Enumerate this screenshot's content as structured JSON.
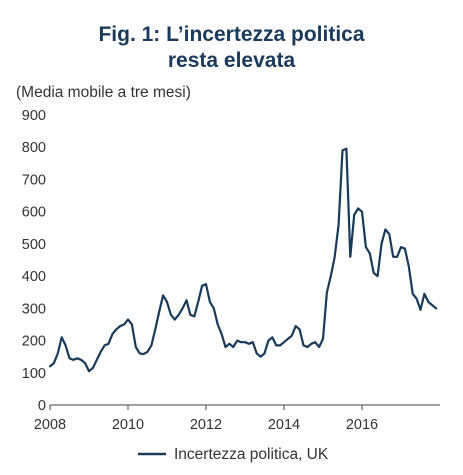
{
  "chart_data": {
    "type": "line",
    "title_line1": "Fig. 1: L’incertezza politica",
    "title_line2": "resta elevata",
    "subtitle": "(Media mobile a tre mesi)",
    "xlabel": "",
    "ylabel": "",
    "xlim": [
      2008,
      2018.0
    ],
    "ylim": [
      0,
      900
    ],
    "x_ticks": [
      2008,
      2010,
      2012,
      2014,
      2016
    ],
    "x_tick_labels": [
      "2008",
      "2010",
      "2012",
      "2014",
      "2016"
    ],
    "y_ticks": [
      0,
      100,
      200,
      300,
      400,
      500,
      600,
      700,
      800,
      900
    ],
    "y_tick_labels": [
      "0",
      "100",
      "200",
      "300",
      "400",
      "500",
      "600",
      "700",
      "800",
      "900"
    ],
    "grid": false,
    "legend_position": "bottom",
    "series": [
      {
        "name": "Incertezza politica, UK",
        "color": "#1a3a5c",
        "x": [
          2008.0,
          2008.1,
          2008.2,
          2008.3,
          2008.4,
          2008.5,
          2008.6,
          2008.7,
          2008.8,
          2008.9,
          2009.0,
          2009.1,
          2009.2,
          2009.3,
          2009.4,
          2009.5,
          2009.6,
          2009.7,
          2009.8,
          2009.9,
          2010.0,
          2010.1,
          2010.2,
          2010.3,
          2010.4,
          2010.5,
          2010.6,
          2010.7,
          2010.8,
          2010.9,
          2011.0,
          2011.1,
          2011.2,
          2011.3,
          2011.4,
          2011.5,
          2011.6,
          2011.7,
          2011.8,
          2011.9,
          2012.0,
          2012.1,
          2012.2,
          2012.3,
          2012.4,
          2012.5,
          2012.6,
          2012.7,
          2012.8,
          2012.9,
          2013.0,
          2013.1,
          2013.2,
          2013.3,
          2013.4,
          2013.5,
          2013.6,
          2013.7,
          2013.8,
          2013.9,
          2014.0,
          2014.1,
          2014.2,
          2014.3,
          2014.4,
          2014.5,
          2014.6,
          2014.7,
          2014.8,
          2014.9,
          2015.0,
          2015.1,
          2015.2,
          2015.3,
          2015.4,
          2015.5,
          2015.6,
          2015.7,
          2015.8,
          2015.9,
          2016.0,
          2016.1,
          2016.2,
          2016.3,
          2016.4,
          2016.5,
          2016.6,
          2016.7,
          2016.8,
          2016.9,
          2017.0,
          2017.1,
          2017.2,
          2017.3,
          2017.4,
          2017.5,
          2017.6,
          2017.7,
          2017.8,
          2017.9
        ],
        "values": [
          120,
          130,
          160,
          210,
          185,
          145,
          140,
          145,
          140,
          130,
          105,
          115,
          140,
          165,
          185,
          190,
          220,
          235,
          245,
          250,
          265,
          250,
          180,
          160,
          158,
          165,
          185,
          235,
          290,
          340,
          320,
          280,
          265,
          280,
          300,
          325,
          280,
          275,
          320,
          370,
          375,
          320,
          300,
          250,
          220,
          180,
          190,
          180,
          200,
          195,
          195,
          190,
          195,
          160,
          150,
          160,
          200,
          210,
          185,
          185,
          195,
          205,
          215,
          245,
          235,
          185,
          180,
          190,
          195,
          180,
          205,
          350,
          400,
          460,
          560,
          790,
          795,
          460,
          590,
          610,
          600,
          490,
          470,
          410,
          400,
          500,
          545,
          530,
          460,
          460,
          490,
          485,
          430,
          345,
          330,
          295,
          345,
          320,
          310,
          300
        ]
      }
    ]
  }
}
